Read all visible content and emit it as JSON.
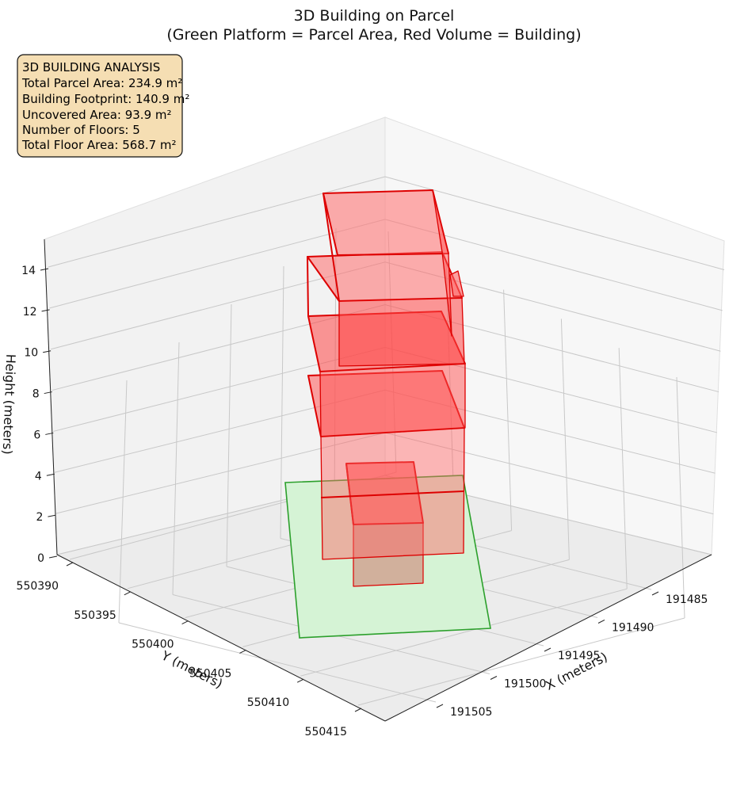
{
  "chart_data": {
    "type": "3d-box",
    "title": "3D Building on Parcel",
    "subtitle": "(Green Platform = Parcel Area, Red Volume = Building)",
    "xlabel": "X (meters)",
    "ylabel": "Y (meters)",
    "zlabel": "Height (meters)",
    "xticks": [
      "191485",
      "191490",
      "191495",
      "191500",
      "191505"
    ],
    "yticks": [
      "550390",
      "550395",
      "550400",
      "550405",
      "550410",
      "550415"
    ],
    "zticks": [
      "0",
      "2",
      "4",
      "6",
      "8",
      "10",
      "12",
      "14"
    ],
    "grid": true,
    "parcel_color": "#2ca02c",
    "building_color": "#ff0000",
    "info_box": {
      "heading": "3D BUILDING ANALYSIS",
      "lines": [
        "Total Parcel Area: 234.9 m²",
        "Building Footprint: 140.9 m²",
        "Uncovered Area: 93.9 m²",
        "Number of Floors: 5",
        "Total Floor Area: 568.7 m²"
      ]
    }
  }
}
